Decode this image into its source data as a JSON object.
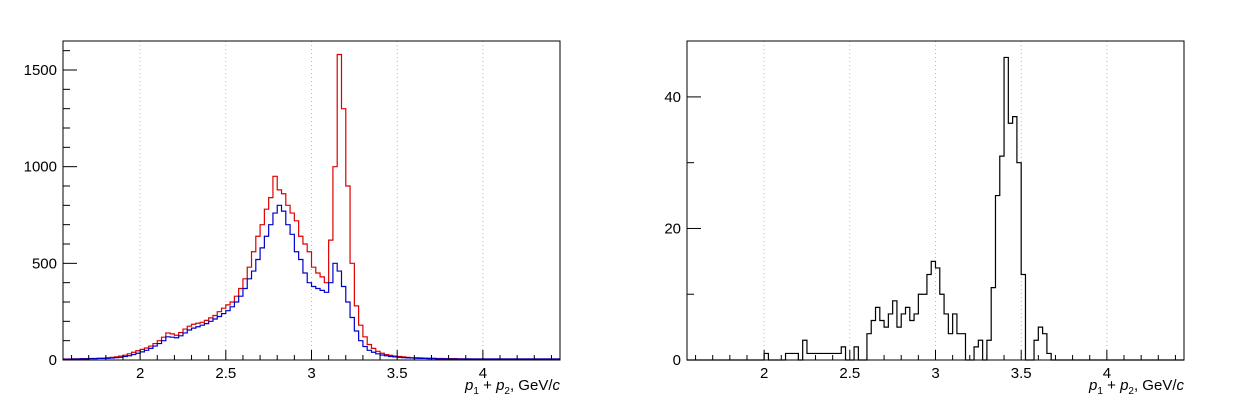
{
  "chart_data": [
    {
      "type": "step",
      "xlabel": {
        "p": "p",
        "sub1": "1",
        "plus": " + ",
        "p2": "p",
        "sub2": "2",
        "unit": ", GeV/",
        "c": "c"
      },
      "xlim": [
        1.55,
        4.45
      ],
      "ylim": [
        0,
        1650
      ],
      "x_ticks": [
        2,
        2.5,
        3,
        3.5,
        4
      ],
      "x_tick_labels": [
        "2",
        "2.5",
        "3",
        "3.5",
        "4"
      ],
      "y_ticks": [
        0,
        500,
        1000,
        1500
      ],
      "y_tick_labels": [
        "0",
        "500",
        "1000",
        "1500"
      ],
      "grid": "vertical-dotted",
      "bin_start": 1.55,
      "bin_width": 0.025,
      "series": [
        {
          "color": "#dd0000",
          "values": [
            5,
            5,
            6,
            6,
            7,
            7,
            8,
            8,
            9,
            10,
            12,
            14,
            16,
            20,
            25,
            32,
            40,
            48,
            55,
            62,
            72,
            85,
            100,
            118,
            140,
            135,
            128,
            142,
            160,
            175,
            185,
            190,
            195,
            205,
            218,
            230,
            250,
            268,
            285,
            300,
            330,
            370,
            420,
            480,
            560,
            640,
            700,
            780,
            840,
            950,
            880,
            860,
            800,
            760,
            720,
            640,
            600,
            560,
            480,
            450,
            430,
            400,
            620,
            1000,
            1580,
            1300,
            900,
            500,
            280,
            180,
            120,
            80,
            60,
            45,
            35,
            28,
            24,
            20,
            18,
            16,
            14,
            12,
            12,
            11,
            10,
            9,
            9,
            8,
            8,
            7,
            7,
            7,
            6,
            6,
            6,
            5,
            5,
            5,
            5,
            5,
            5,
            5,
            5,
            5,
            5,
            5,
            5,
            5,
            5,
            5,
            5,
            5,
            5,
            5,
            5,
            5
          ]
        },
        {
          "color": "#0000cc",
          "values": [
            4,
            4,
            5,
            5,
            6,
            6,
            7,
            7,
            8,
            8,
            9,
            10,
            12,
            14,
            18,
            22,
            28,
            35,
            42,
            50,
            60,
            72,
            85,
            100,
            120,
            118,
            115,
            125,
            140,
            155,
            165,
            172,
            180,
            188,
            200,
            212,
            225,
            240,
            255,
            275,
            300,
            330,
            370,
            420,
            460,
            520,
            580,
            640,
            700,
            760,
            800,
            770,
            700,
            650,
            560,
            520,
            450,
            400,
            380,
            370,
            360,
            350,
            400,
            500,
            460,
            380,
            300,
            220,
            150,
            100,
            70,
            50,
            40,
            32,
            26,
            22,
            18,
            16,
            14,
            12,
            11,
            10,
            9,
            8,
            8,
            7,
            7,
            6,
            6,
            6,
            5,
            5,
            5,
            5,
            5,
            5,
            5,
            5,
            5,
            5,
            5,
            5,
            5,
            5,
            5,
            5,
            5,
            5,
            5,
            5,
            5,
            5,
            5,
            5,
            5,
            5,
            5
          ]
        }
      ]
    },
    {
      "type": "step",
      "xlabel": {
        "p": "p",
        "sub1": "1",
        "plus": " + ",
        "p2": "p",
        "sub2": "2",
        "unit": ", GeV/",
        "c": "c"
      },
      "xlim": [
        1.55,
        4.45
      ],
      "ylim": [
        0,
        48.5
      ],
      "x_ticks": [
        2,
        2.5,
        3,
        3.5,
        4
      ],
      "x_tick_labels": [
        "2",
        "2.5",
        "3",
        "3.5",
        "4"
      ],
      "y_ticks": [
        0,
        20,
        40
      ],
      "y_tick_labels": [
        "0",
        "20",
        "40"
      ],
      "grid": "vertical-dotted",
      "bin_start": 1.55,
      "bin_width": 0.025,
      "series": [
        {
          "color": "#000000",
          "values": [
            0,
            0,
            0,
            0,
            0,
            0,
            0,
            0,
            0,
            0,
            0,
            0,
            0,
            0,
            0,
            0,
            0,
            0,
            1,
            0,
            0,
            0,
            0,
            1,
            1,
            1,
            0,
            3,
            1,
            1,
            1,
            1,
            1,
            1,
            1,
            1,
            2,
            0,
            0,
            2,
            0,
            0,
            4,
            6,
            8,
            6,
            5,
            7,
            9,
            5,
            7,
            8,
            6,
            7,
            10,
            10,
            13,
            15,
            14,
            10,
            7,
            4,
            7,
            4,
            4,
            0,
            0,
            2,
            3,
            0,
            3,
            11,
            25,
            31,
            46,
            36,
            37,
            30,
            13,
            0,
            0,
            3,
            5,
            4,
            1,
            0,
            0,
            0,
            0,
            0,
            0,
            0,
            0,
            0,
            0,
            0,
            0,
            0,
            0,
            0,
            0,
            0,
            0,
            0,
            0,
            0,
            0,
            0,
            0,
            0,
            0,
            0,
            0,
            0,
            0,
            0,
            0
          ]
        }
      ]
    }
  ]
}
